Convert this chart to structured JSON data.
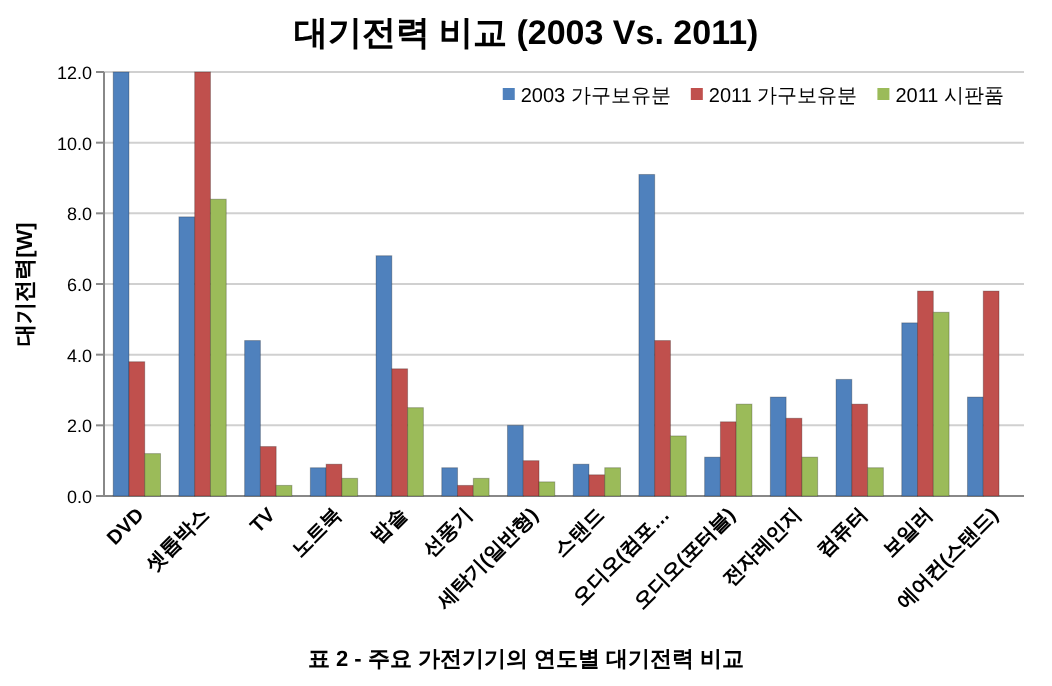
{
  "chart_data": {
    "type": "bar",
    "title": "대기전력 비교 (2003 Vs. 2011)",
    "ylabel": "대기전력[W]",
    "categories": [
      "DVD",
      "셋톱박스",
      "TV",
      "노트북",
      "밥솥",
      "선풍기",
      "세탁기(일반형)",
      "스탠드",
      "오디오(컴포…",
      "오디오(포터블)",
      "전자레인지",
      "컴퓨터",
      "보일러",
      "에어컨(스탠드)"
    ],
    "series": [
      {
        "name": "2003 가구보유분",
        "color": "#4f81bd",
        "values": [
          12.0,
          7.9,
          4.4,
          0.8,
          6.8,
          0.8,
          2.0,
          0.9,
          9.1,
          1.1,
          2.8,
          3.3,
          4.9,
          2.8
        ]
      },
      {
        "name": "2011 가구보유분",
        "color": "#c0504d",
        "values": [
          3.8,
          12.0,
          1.4,
          0.9,
          3.6,
          0.3,
          1.0,
          0.6,
          4.4,
          2.1,
          2.2,
          2.6,
          5.8,
          5.8
        ]
      },
      {
        "name": "2011 시판품",
        "color": "#9bbb59",
        "values": [
          1.2,
          8.4,
          0.3,
          0.5,
          2.5,
          0.5,
          0.4,
          0.8,
          1.7,
          2.6,
          1.1,
          0.8,
          5.2,
          null
        ]
      }
    ],
    "ylim": [
      0,
      12
    ],
    "yticks": [
      {
        "value": 0,
        "label": "0.0"
      },
      {
        "value": 2,
        "label": "2.0"
      },
      {
        "value": 4,
        "label": "4.0"
      },
      {
        "value": 6,
        "label": "6.0"
      },
      {
        "value": 8,
        "label": "8.0"
      },
      {
        "value": 10,
        "label": "10.0"
      },
      {
        "value": 12,
        "label": "12.0"
      }
    ],
    "grid": "y",
    "legend": "top right",
    "annotations": [
      "표 2 - 주요 가전기기의 연도별 대기전력 비교"
    ]
  }
}
